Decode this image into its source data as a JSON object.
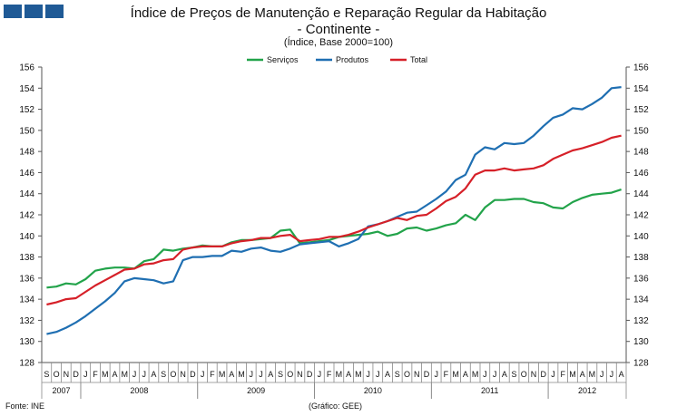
{
  "header": {
    "title_line1": "Índice de Preços de Manutenção e Reparação Regular da Habitação",
    "title_line2": "- Continente -",
    "subtitle": "(Índice, Base 2000=100)"
  },
  "footer": {
    "source": "Fonte: INE",
    "graphic_credit": "(Gráfico: GEE)"
  },
  "chart_data": {
    "type": "line",
    "title": "Índice de Preços de Manutenção e Reparação Regular da Habitação - Continente -",
    "subtitle": "(Índice, Base 2000=100)",
    "xlabel": "",
    "ylabel": "",
    "ylim": [
      128,
      156
    ],
    "yticks": [
      128,
      130,
      132,
      134,
      136,
      138,
      140,
      142,
      144,
      146,
      148,
      150,
      152,
      154,
      156
    ],
    "grid": false,
    "legend_position": "top-center",
    "months": [
      "S",
      "O",
      "N",
      "D",
      "J",
      "F",
      "M",
      "A",
      "M",
      "J",
      "J",
      "A",
      "S",
      "O",
      "N",
      "D",
      "J",
      "F",
      "M",
      "A",
      "M",
      "J",
      "J",
      "A",
      "S",
      "O",
      "N",
      "D",
      "J",
      "F",
      "M",
      "A",
      "M",
      "J",
      "J",
      "A",
      "S",
      "O",
      "N",
      "D",
      "J",
      "F",
      "M",
      "A",
      "M",
      "J",
      "J",
      "A",
      "S",
      "O",
      "N",
      "D",
      "J",
      "F",
      "M",
      "A",
      "M",
      "J",
      "J",
      "A"
    ],
    "years": [
      {
        "label": "2007",
        "start": 0,
        "count": 4
      },
      {
        "label": "2008",
        "start": 4,
        "count": 12
      },
      {
        "label": "2009",
        "start": 16,
        "count": 12
      },
      {
        "label": "2010",
        "start": 28,
        "count": 12
      },
      {
        "label": "2011",
        "start": 40,
        "count": 12
      },
      {
        "label": "2012",
        "start": 52,
        "count": 8
      }
    ],
    "series": [
      {
        "name": "Serviços",
        "color": "#22a34a",
        "values": [
          135.1,
          135.2,
          135.5,
          135.4,
          135.9,
          136.7,
          136.9,
          137.0,
          137.0,
          136.9,
          137.6,
          137.8,
          138.7,
          138.6,
          138.8,
          138.9,
          139.1,
          139.0,
          139.0,
          139.4,
          139.6,
          139.6,
          139.7,
          139.8,
          140.5,
          140.6,
          139.3,
          139.4,
          139.5,
          139.6,
          139.9,
          140.0,
          140.1,
          140.2,
          140.4,
          140.0,
          140.2,
          140.7,
          140.8,
          140.5,
          140.7,
          141.0,
          141.2,
          142.0,
          141.5,
          142.7,
          143.4,
          143.4,
          143.5,
          143.5,
          143.2,
          143.1,
          142.7,
          142.6,
          143.2,
          143.6,
          143.9,
          144.0,
          144.1,
          144.4
        ]
      },
      {
        "name": "Produtos",
        "color": "#1f6fb2",
        "values": [
          130.7,
          130.9,
          131.3,
          131.8,
          132.4,
          133.1,
          133.8,
          134.6,
          135.7,
          136.0,
          135.9,
          135.8,
          135.5,
          135.7,
          137.7,
          138.0,
          138.0,
          138.1,
          138.1,
          138.6,
          138.5,
          138.8,
          138.9,
          138.6,
          138.5,
          138.8,
          139.2,
          139.3,
          139.4,
          139.5,
          139.0,
          139.3,
          139.7,
          140.9,
          141.1,
          141.4,
          141.8,
          142.2,
          142.3,
          142.9,
          143.5,
          144.2,
          145.3,
          145.8,
          147.7,
          148.4,
          148.2,
          148.8,
          148.7,
          148.8,
          149.5,
          150.4,
          151.2,
          151.5,
          152.1,
          152.0,
          152.5,
          153.1,
          154.0,
          154.1
        ]
      },
      {
        "name": "Total",
        "color": "#d62028",
        "values": [
          133.5,
          133.7,
          134.0,
          134.1,
          134.7,
          135.3,
          135.8,
          136.3,
          136.8,
          136.9,
          137.3,
          137.4,
          137.7,
          137.8,
          138.7,
          138.9,
          139.0,
          139.0,
          139.0,
          139.3,
          139.5,
          139.6,
          139.8,
          139.8,
          140.0,
          140.1,
          139.5,
          139.6,
          139.7,
          139.9,
          139.9,
          140.1,
          140.4,
          140.8,
          141.1,
          141.4,
          141.7,
          141.5,
          141.9,
          142.0,
          142.6,
          143.3,
          143.7,
          144.5,
          145.8,
          146.2,
          146.2,
          146.4,
          146.2,
          146.3,
          146.4,
          146.7,
          147.3,
          147.7,
          148.1,
          148.3,
          148.6,
          148.9,
          149.3,
          149.5
        ]
      }
    ]
  }
}
